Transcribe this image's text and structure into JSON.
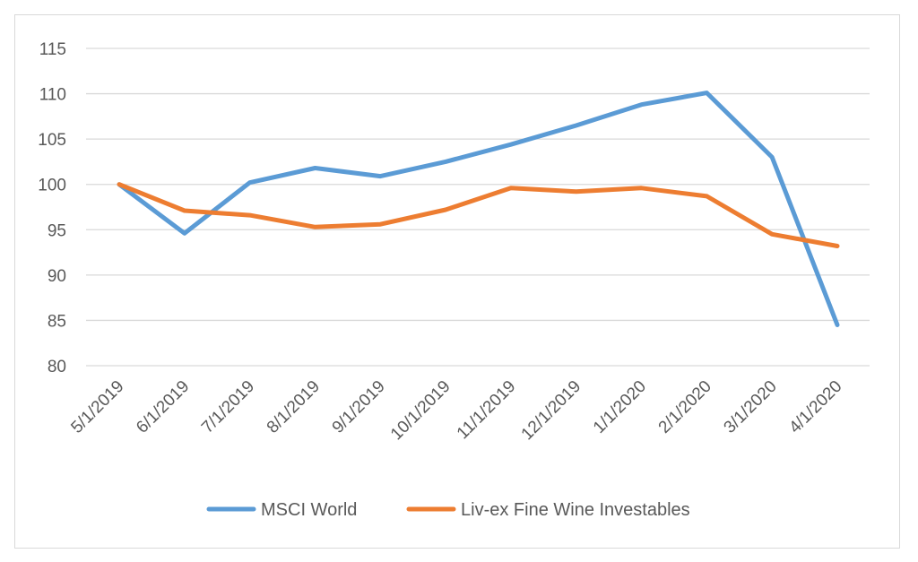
{
  "chart_data": {
    "type": "line",
    "title": "",
    "xlabel": "",
    "ylabel": "",
    "categories": [
      "5/1/2019",
      "6/1/2019",
      "7/1/2019",
      "8/1/2019",
      "9/1/2019",
      "10/1/2019",
      "11/1/2019",
      "12/1/2019",
      "1/1/2020",
      "2/1/2020",
      "3/1/2020",
      "4/1/2020"
    ],
    "ylim": [
      80,
      115
    ],
    "yticks": [
      80,
      85,
      90,
      95,
      100,
      105,
      110,
      115
    ],
    "grid": "horizontal",
    "legend_position": "bottom",
    "series": [
      {
        "name": "MSCI World",
        "color": "#5B9BD5",
        "values": [
          100,
          94.6,
          100.2,
          101.8,
          100.9,
          102.5,
          104.4,
          106.5,
          108.8,
          110.1,
          103.0,
          84.5
        ]
      },
      {
        "name": "Liv-ex Fine Wine Investables",
        "color": "#ED7D31",
        "values": [
          100,
          97.1,
          96.6,
          95.3,
          95.6,
          97.2,
          99.6,
          99.2,
          99.6,
          98.7,
          94.5,
          93.2
        ]
      }
    ]
  }
}
